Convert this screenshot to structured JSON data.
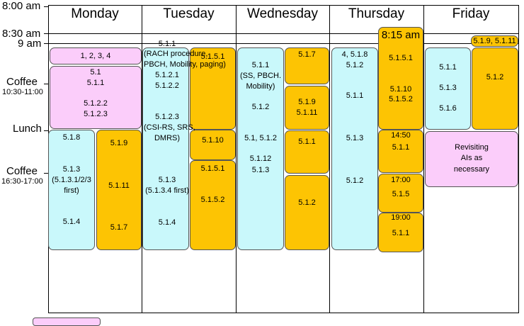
{
  "times": {
    "t800": "8:00 am",
    "t830": "8:30 am",
    "t900": "9 am",
    "coffee1": "Coffee",
    "coffee1_range": "10:30-11:00",
    "lunch": "Lunch",
    "coffee2": "Coffee",
    "coffee2_range": "16:30-17:00"
  },
  "days": [
    "Monday",
    "Tuesday",
    "Wednesday",
    "Thursday",
    "Friday"
  ],
  "monday": {
    "top": "1, 2, 3, 4",
    "p1": "5.1",
    "p2": "5.1.1",
    "p3": "5.1.2.2",
    "p4": "5.1.2.3",
    "c1": "5.1.8",
    "c2": "5.1.3",
    "c3": "(5.1.3.1/2/3",
    "c4": "first)",
    "c5": "5.1.4",
    "o1": "5.1.9",
    "o2": "5.1.11",
    "o3": "5.1.7"
  },
  "tuesday": {
    "a1": "5.1.1",
    "a2": "(RACH procedure,",
    "a3": "PBCH, Mobility, paging)",
    "a4": "5.1.2.1",
    "a5": "5.1.2.2",
    "a6": "5.1.2.3",
    "a7": "(CSI-RS, SRS,",
    "a8": "DMRS)",
    "a9": "5.1.3",
    "a10": "(5.1.3.4 first)",
    "a11": "5.1.4",
    "o1": "5.1.5.1",
    "o2": "5.1.10",
    "o3": "5.1.5.1",
    "o4": "5.1.5.2"
  },
  "wednesday": {
    "c1": "5.1.1",
    "c2": "(SS, PBCH.",
    "c3": "Mobility)",
    "c4": "5.1.2",
    "c5": "5.1, 5.1.2",
    "c6": "5.1.12",
    "c7": "5.1.3",
    "o1": "5.1.7",
    "o2": "5.1.9",
    "o3": "5.1.11",
    "o4": "5.1.1",
    "o5": "5.1.2"
  },
  "thursday": {
    "c1": "4,  5.1.8",
    "c2": "5.1.2",
    "c3": "5.1.1",
    "c4": "5.1.3",
    "c5": "5.1.2",
    "head": "8:15 am",
    "o1": "5.1.5.1",
    "o2": "5.1.10",
    "o3": "5.1.5.2",
    "o4a": "14:50",
    "o4b": "5.1.1",
    "o5a": "17:00",
    "o5b": "5.1.5",
    "o6a": "19:00",
    "o6b": "5.1.1"
  },
  "friday": {
    "top": "5.1.9, 5.1.11",
    "c1": "5.1.1",
    "c2": "5.1.3",
    "c3": "5.1.6",
    "o1": "5.1.2",
    "p1": "Revisiting",
    "p2": "AIs as",
    "p3": "necessary"
  },
  "colors": {
    "pink": "#fbcdfa",
    "cyan": "#c9f8fb",
    "orange": "#fdc403"
  }
}
